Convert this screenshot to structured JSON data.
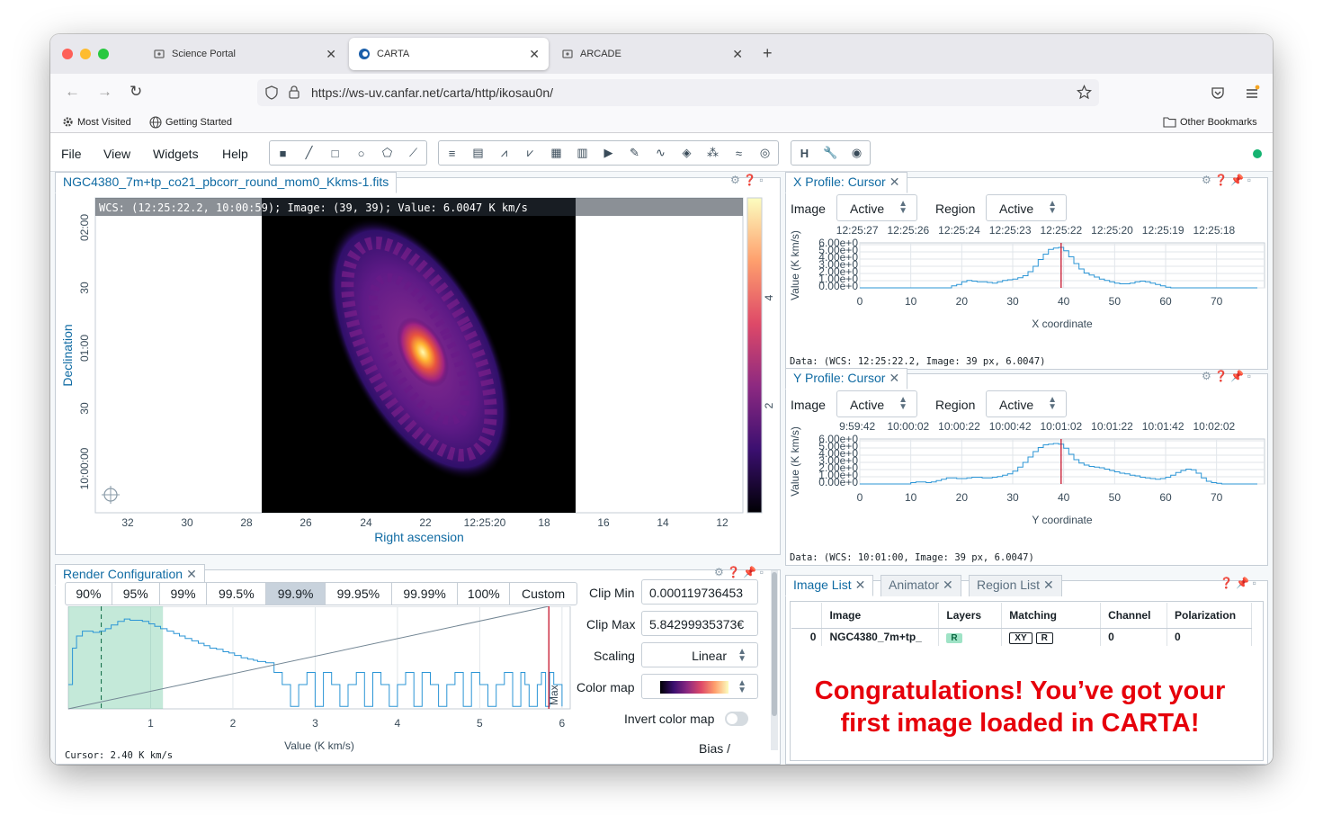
{
  "browser": {
    "tabs": [
      {
        "label": "Science Portal"
      },
      {
        "label": "CARTA"
      },
      {
        "label": "ARCADE"
      }
    ],
    "url": "https://ws-uv.canfar.net/carta/http/ikosau0n/",
    "bookmarks": [
      "Most Visited",
      "Getting Started"
    ],
    "other_bookmarks": "Other Bookmarks"
  },
  "menu": [
    "File",
    "View",
    "Widgets",
    "Help"
  ],
  "image_view": {
    "tab": "NGC4380_7m+tp_co21_pbcorr_round_mom0_Kkms-1.fits",
    "cursor_info": "WCS: (12:25:22.2, 10:00:59); Image: (39, 39); Value:  6.0047 K km/s",
    "x_ticks": [
      "32",
      "30",
      "28",
      "26",
      "24",
      "22",
      "12:25:20",
      "18",
      "16",
      "14",
      "12"
    ],
    "y_ticks": [
      "02:00",
      "30",
      "01:00",
      "30",
      "10:00:00"
    ],
    "xlabel": "Right ascension",
    "ylabel": "Declination",
    "colorbar_ticks": [
      "4",
      "2"
    ]
  },
  "x_profile": {
    "tab": "X Profile: Cursor",
    "image_label": "Image",
    "image_value": "Active",
    "region_label": "Region",
    "region_value": "Active",
    "top_ticks": [
      "12:25:27",
      "12:25:26",
      "12:25:24",
      "12:25:23",
      "12:25:22",
      "12:25:20",
      "12:25:19",
      "12:25:18"
    ],
    "bottom_ticks": [
      "0",
      "10",
      "20",
      "30",
      "40",
      "50",
      "60",
      "70"
    ],
    "y_ticks": [
      "6.00e+0",
      "5.00e+0",
      "4.00e+0",
      "3.00e+0",
      "2.00e+0",
      "1.00e+0",
      "0.00e+0"
    ],
    "ylabel": "Value (K km/s)",
    "xlabel": "X coordinate",
    "data_text": "Data: (WCS: 12:25:22.2, Image: 39 px, 6.0047)"
  },
  "y_profile": {
    "tab": "Y Profile: Cursor",
    "image_label": "Image",
    "image_value": "Active",
    "region_label": "Region",
    "region_value": "Active",
    "top_ticks": [
      "9:59:42",
      "10:00:02",
      "10:00:22",
      "10:00:42",
      "10:01:02",
      "10:01:22",
      "10:01:42",
      "10:02:02"
    ],
    "bottom_ticks": [
      "0",
      "10",
      "20",
      "30",
      "40",
      "50",
      "60",
      "70"
    ],
    "y_ticks": [
      "6.00e+0",
      "5.00e+0",
      "4.00e+0",
      "3.00e+0",
      "2.00e+0",
      "1.00e+0",
      "0.00e+0"
    ],
    "ylabel": "Value (K km/s)",
    "xlabel": "Y coordinate",
    "data_text": "Data: (WCS: 10:01:00, Image: 39 px, 6.0047)"
  },
  "render_config": {
    "tab": "Render Configuration",
    "percentiles": [
      "90%",
      "95%",
      "99%",
      "99.5%",
      "99.9%",
      "99.95%",
      "99.99%",
      "100%",
      "Custom"
    ],
    "selected_percentile": "99.9%",
    "clip_min_label": "Clip Min",
    "clip_min": "0.000119736453",
    "clip_max_label": "Clip Max",
    "clip_max": "5.84299935373€",
    "scaling_label": "Scaling",
    "scaling": "Linear",
    "colormap_label": "Color map",
    "invert_label": "Invert color map",
    "bias_label": "Bias /",
    "hist_x_ticks": [
      "1",
      "2",
      "3",
      "4",
      "5",
      "6"
    ],
    "hist_xlabel": "Value (K km/s)",
    "max_marker": "Max",
    "cursor_text": "Cursor: 2.40 K km/s"
  },
  "image_list": {
    "tabs": [
      "Image List",
      "Animator",
      "Region List"
    ],
    "columns": [
      "Image",
      "Layers",
      "Matching",
      "Channel",
      "Polarization"
    ],
    "rows": [
      {
        "index": "0",
        "image": "NGC4380_7m+tp_",
        "layers": "R",
        "match_xy": "XY",
        "match_r": "R",
        "channel": "0",
        "polarization": "0"
      }
    ]
  },
  "annotation": {
    "line1": "Congratulations!  You’ve got your",
    "line2": "first image loaded in CARTA!"
  },
  "colors": {
    "accent": "#106ba3",
    "congrats": "#e6000b",
    "status_ok": "#15b371",
    "marker": "#c2001a"
  }
}
